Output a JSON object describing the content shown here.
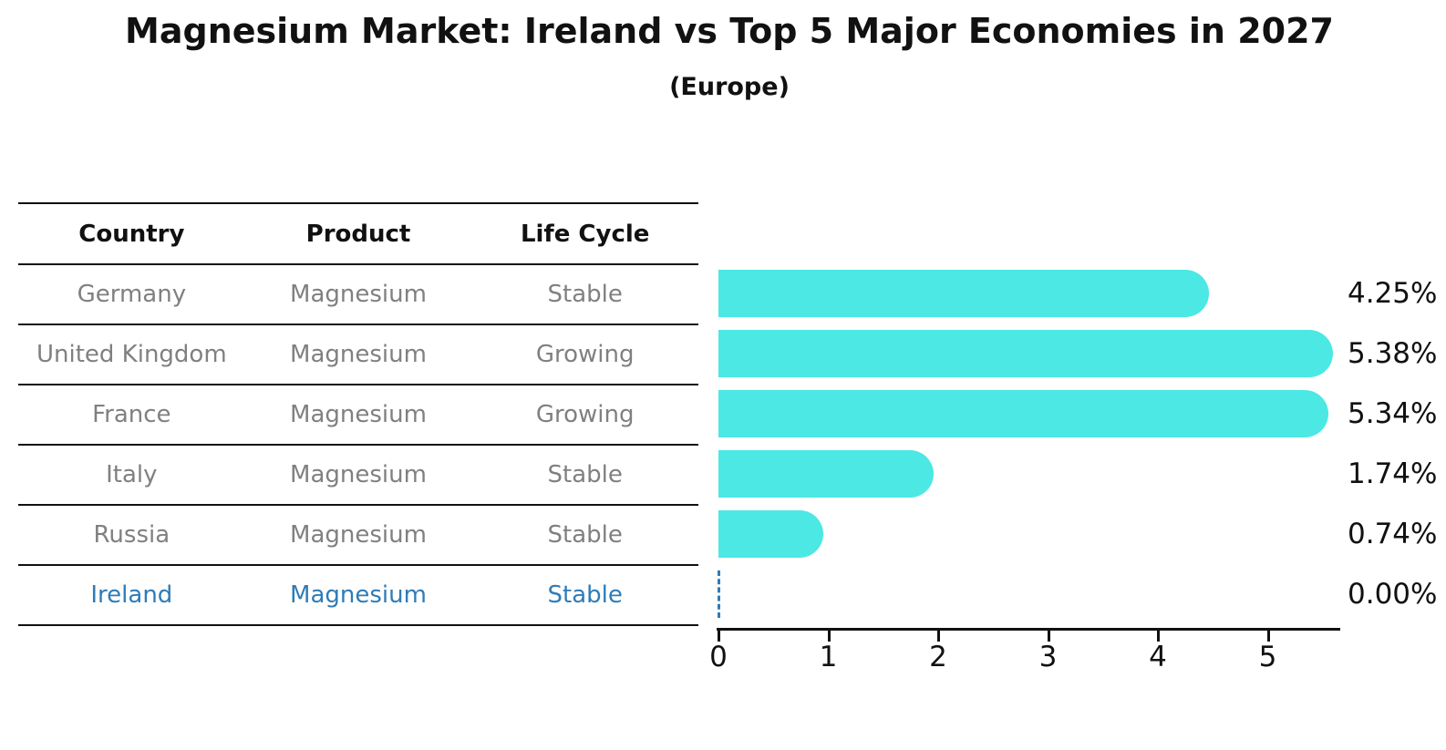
{
  "title": "Magnesium Market: Ireland vs Top 5 Major Economies in 2027",
  "subtitle": "(Europe)",
  "colors": {
    "bar": "#4BE8E4",
    "highlight_blue": "#2E7CB8",
    "table_text_gray": "#808080",
    "text_black": "#111111"
  },
  "table": {
    "headers": [
      "Country",
      "Product",
      "Life Cycle"
    ],
    "rows": [
      {
        "country": "Germany",
        "product": "Magnesium",
        "life_cycle": "Stable",
        "highlight": false
      },
      {
        "country": "United Kingdom",
        "product": "Magnesium",
        "life_cycle": "Growing",
        "highlight": false
      },
      {
        "country": "France",
        "product": "Magnesium",
        "life_cycle": "Growing",
        "highlight": false
      },
      {
        "country": "Italy",
        "product": "Magnesium",
        "life_cycle": "Stable",
        "highlight": false
      },
      {
        "country": "Russia",
        "product": "Magnesium",
        "life_cycle": "Stable",
        "highlight": false
      },
      {
        "country": "Ireland",
        "product": "Magnesium",
        "life_cycle": "Stable",
        "highlight": true
      }
    ]
  },
  "chart_data": {
    "type": "bar",
    "orientation": "horizontal",
    "title": "Magnesium Market: Ireland vs Top 5 Major Economies in 2027",
    "subtitle": "(Europe)",
    "categories": [
      "Germany",
      "United Kingdom",
      "France",
      "Italy",
      "Russia",
      "Ireland"
    ],
    "values": [
      4.25,
      5.38,
      5.34,
      1.74,
      0.74,
      0.0
    ],
    "value_labels": [
      "4.25%",
      "5.38%",
      "5.34%",
      "1.74%",
      "0.74%",
      "0.00%"
    ],
    "x_ticks": [
      0,
      1,
      2,
      3,
      4,
      5
    ],
    "xlim": [
      0,
      5.65
    ],
    "xlabel": "",
    "ylabel": "",
    "grid": false,
    "legend": false,
    "highlight_category": "Ireland",
    "highlight_marker": "dashed zero line at x=0"
  }
}
